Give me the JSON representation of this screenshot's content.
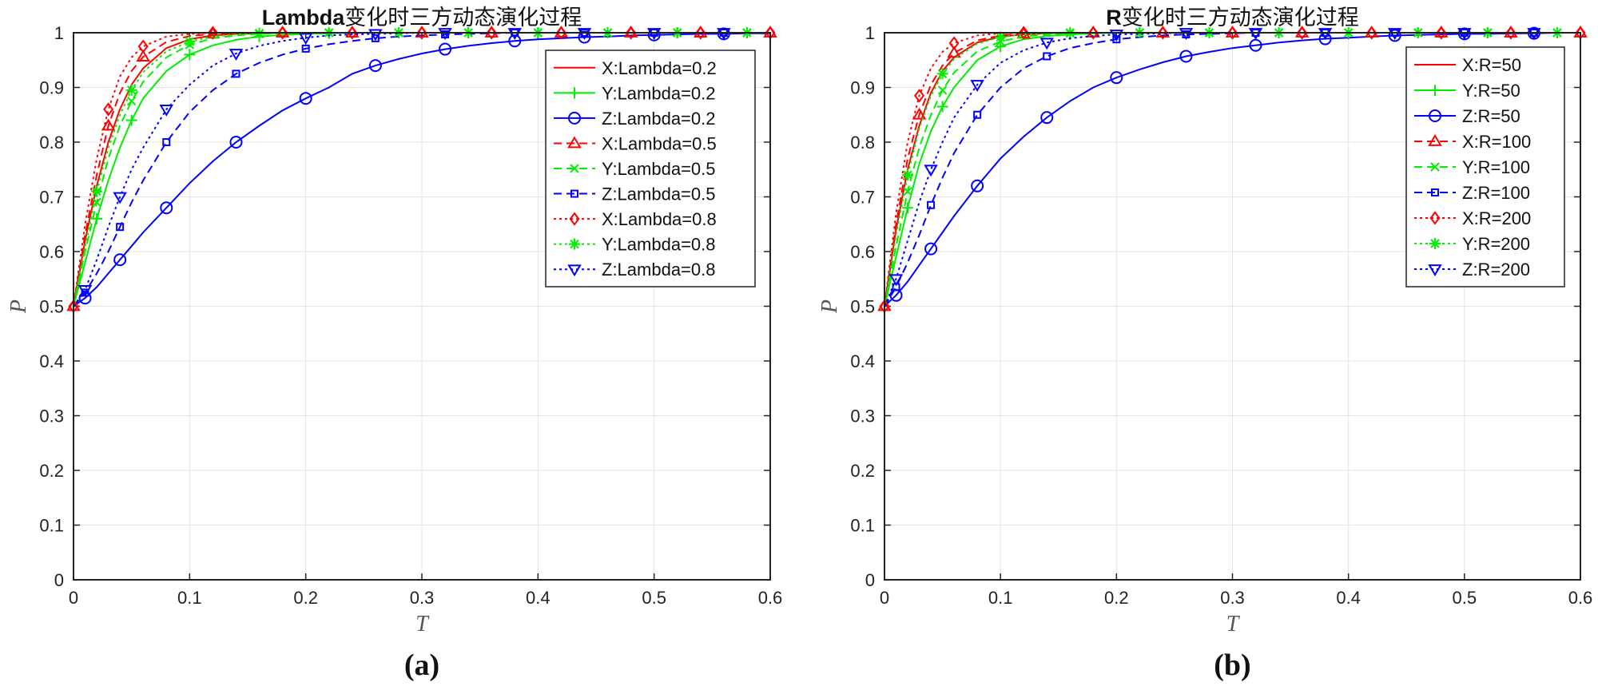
{
  "chart_data": [
    {
      "type": "line",
      "title_bold": "Lambda",
      "title_rest": "变化时三方动态演化过程",
      "xlabel": "T",
      "ylabel": "P",
      "xlim": [
        0,
        0.6
      ],
      "ylim": [
        0,
        1
      ],
      "xticks": [
        "0",
        "0.1",
        "0.2",
        "0.3",
        "0.4",
        "0.5",
        "0.6"
      ],
      "yticks": [
        "0",
        "0.1",
        "0.2",
        "0.3",
        "0.4",
        "0.5",
        "0.6",
        "0.7",
        "0.8",
        "0.9",
        "1"
      ],
      "grid": true,
      "legend_position": "top-right",
      "caption": "(a)",
      "x": [
        0,
        0.01,
        0.02,
        0.03,
        0.04,
        0.05,
        0.06,
        0.08,
        0.1,
        0.12,
        0.14,
        0.16,
        0.18,
        0.2,
        0.22,
        0.24,
        0.26,
        0.28,
        0.3,
        0.32,
        0.34,
        0.36,
        0.38,
        0.4,
        0.42,
        0.44,
        0.46,
        0.48,
        0.5,
        0.52,
        0.54,
        0.56,
        0.58,
        0.6
      ],
      "series": [
        {
          "name": "X:Lambda=0.2",
          "color": "#ff0000",
          "dash": "solid",
          "marker": "none",
          "values": [
            0.5,
            0.62,
            0.72,
            0.8,
            0.86,
            0.905,
            0.935,
            0.972,
            0.988,
            0.995,
            0.998,
            0.999,
            1,
            1,
            1,
            1,
            1,
            1,
            1,
            1,
            1,
            1,
            1,
            1,
            1,
            1,
            1,
            1,
            1,
            1,
            1,
            1,
            1,
            1
          ]
        },
        {
          "name": "Y:Lambda=0.2",
          "color": "#00ee00",
          "dash": "solid",
          "marker": "plus",
          "values": [
            0.5,
            0.58,
            0.66,
            0.73,
            0.79,
            0.84,
            0.88,
            0.93,
            0.96,
            0.977,
            0.987,
            0.993,
            0.996,
            0.998,
            0.999,
            1,
            1,
            1,
            1,
            1,
            1,
            1,
            1,
            1,
            1,
            1,
            1,
            1,
            1,
            1,
            1,
            1,
            1,
            1
          ]
        },
        {
          "name": "Z:Lambda=0.2",
          "color": "#0000ff",
          "dash": "solid",
          "marker": "circle",
          "values": [
            0.5,
            0.515,
            0.535,
            0.56,
            0.585,
            0.61,
            0.635,
            0.68,
            0.725,
            0.765,
            0.8,
            0.83,
            0.858,
            0.88,
            0.9,
            0.925,
            0.94,
            0.952,
            0.962,
            0.97,
            0.976,
            0.981,
            0.985,
            0.988,
            0.99,
            0.992,
            0.993,
            0.995,
            0.996,
            0.997,
            0.998,
            0.998,
            0.999,
            0.999
          ]
        },
        {
          "name": "X:Lambda=0.5",
          "color": "#ff0000",
          "dash": "dashed",
          "marker": "triangle",
          "values": [
            0.5,
            0.63,
            0.74,
            0.83,
            0.89,
            0.93,
            0.956,
            0.983,
            0.994,
            0.998,
            1,
            1,
            1,
            1,
            1,
            1,
            1,
            1,
            1,
            1,
            1,
            1,
            1,
            1,
            1,
            1,
            1,
            1,
            1,
            1,
            1,
            1,
            1,
            1
          ]
        },
        {
          "name": "Y:Lambda=0.5",
          "color": "#00ee00",
          "dash": "dashed",
          "marker": "cross",
          "values": [
            0.5,
            0.6,
            0.69,
            0.77,
            0.83,
            0.875,
            0.91,
            0.955,
            0.978,
            0.99,
            0.995,
            0.998,
            0.999,
            1,
            1,
            1,
            1,
            1,
            1,
            1,
            1,
            1,
            1,
            1,
            1,
            1,
            1,
            1,
            1,
            1,
            1,
            1,
            1,
            1
          ]
        },
        {
          "name": "Z:Lambda=0.5",
          "color": "#0000ff",
          "dash": "dashed",
          "marker": "square",
          "values": [
            0.5,
            0.525,
            0.56,
            0.6,
            0.645,
            0.69,
            0.73,
            0.8,
            0.855,
            0.895,
            0.925,
            0.945,
            0.96,
            0.971,
            0.979,
            0.985,
            0.99,
            0.993,
            0.995,
            0.997,
            0.998,
            0.999,
            1,
            1,
            1,
            1,
            1,
            1,
            1,
            1,
            1,
            1,
            1,
            1
          ]
        },
        {
          "name": "X:Lambda=0.8",
          "color": "#ff0000",
          "dash": "dotted",
          "marker": "diamond",
          "values": [
            0.5,
            0.65,
            0.77,
            0.86,
            0.92,
            0.955,
            0.975,
            0.993,
            0.998,
            1,
            1,
            1,
            1,
            1,
            1,
            1,
            1,
            1,
            1,
            1,
            1,
            1,
            1,
            1,
            1,
            1,
            1,
            1,
            1,
            1,
            1,
            1,
            1,
            1
          ]
        },
        {
          "name": "Y:Lambda=0.8",
          "color": "#00ee00",
          "dash": "dotted",
          "marker": "star",
          "values": [
            0.5,
            0.61,
            0.71,
            0.79,
            0.85,
            0.895,
            0.928,
            0.966,
            0.984,
            0.993,
            0.997,
            0.999,
            1,
            1,
            1,
            1,
            1,
            1,
            1,
            1,
            1,
            1,
            1,
            1,
            1,
            1,
            1,
            1,
            1,
            1,
            1,
            1,
            1,
            1
          ]
        },
        {
          "name": "Z:Lambda=0.8",
          "color": "#0000ff",
          "dash": "dotted",
          "marker": "triangle-down",
          "values": [
            0.5,
            0.53,
            0.585,
            0.645,
            0.7,
            0.75,
            0.79,
            0.86,
            0.905,
            0.94,
            0.962,
            0.976,
            0.985,
            0.991,
            0.995,
            0.997,
            0.998,
            0.999,
            1,
            1,
            1,
            1,
            1,
            1,
            1,
            1,
            1,
            1,
            1,
            1,
            1,
            1,
            1,
            1
          ]
        }
      ]
    },
    {
      "type": "line",
      "title_bold": "R",
      "title_rest": "变化时三方动态演化过程",
      "xlabel": "T",
      "ylabel": "P",
      "xlim": [
        0,
        0.6
      ],
      "ylim": [
        0,
        1
      ],
      "xticks": [
        "0",
        "0.1",
        "0.2",
        "0.3",
        "0.4",
        "0.5",
        "0.6"
      ],
      "yticks": [
        "0",
        "0.1",
        "0.2",
        "0.3",
        "0.4",
        "0.5",
        "0.6",
        "0.7",
        "0.8",
        "0.9",
        "1"
      ],
      "grid": true,
      "legend_position": "top-right",
      "caption": "(b)",
      "x": [
        0,
        0.01,
        0.02,
        0.03,
        0.04,
        0.05,
        0.06,
        0.08,
        0.1,
        0.12,
        0.14,
        0.16,
        0.18,
        0.2,
        0.22,
        0.24,
        0.26,
        0.28,
        0.3,
        0.32,
        0.34,
        0.36,
        0.38,
        0.4,
        0.42,
        0.44,
        0.46,
        0.48,
        0.5,
        0.52,
        0.54,
        0.56,
        0.58,
        0.6
      ],
      "series": [
        {
          "name": "X:R=50",
          "color": "#ff0000",
          "dash": "solid",
          "marker": "none",
          "values": [
            0.5,
            0.64,
            0.75,
            0.83,
            0.89,
            0.93,
            0.955,
            0.982,
            0.993,
            0.997,
            0.999,
            1,
            1,
            1,
            1,
            1,
            1,
            1,
            1,
            1,
            1,
            1,
            1,
            1,
            1,
            1,
            1,
            1,
            1,
            1,
            1,
            1,
            1,
            1
          ]
        },
        {
          "name": "Y:R=50",
          "color": "#00ee00",
          "dash": "solid",
          "marker": "plus",
          "values": [
            0.5,
            0.59,
            0.68,
            0.76,
            0.82,
            0.865,
            0.9,
            0.95,
            0.975,
            0.988,
            0.994,
            0.997,
            0.999,
            1,
            1,
            1,
            1,
            1,
            1,
            1,
            1,
            1,
            1,
            1,
            1,
            1,
            1,
            1,
            1,
            1,
            1,
            1,
            1,
            1
          ]
        },
        {
          "name": "Z:R=50",
          "color": "#0000ff",
          "dash": "solid",
          "marker": "circle",
          "values": [
            0.5,
            0.52,
            0.545,
            0.575,
            0.605,
            0.635,
            0.665,
            0.72,
            0.77,
            0.81,
            0.845,
            0.875,
            0.9,
            0.918,
            0.933,
            0.946,
            0.957,
            0.965,
            0.972,
            0.977,
            0.982,
            0.986,
            0.989,
            0.991,
            0.993,
            0.995,
            0.996,
            0.997,
            0.998,
            0.998,
            0.999,
            0.999,
            1,
            1
          ]
        },
        {
          "name": "X:R=100",
          "color": "#ff0000",
          "dash": "dashed",
          "marker": "triangle",
          "values": [
            0.5,
            0.65,
            0.77,
            0.85,
            0.905,
            0.94,
            0.963,
            0.986,
            0.995,
            0.998,
            1,
            1,
            1,
            1,
            1,
            1,
            1,
            1,
            1,
            1,
            1,
            1,
            1,
            1,
            1,
            1,
            1,
            1,
            1,
            1,
            1,
            1,
            1,
            1
          ]
        },
        {
          "name": "Y:R=100",
          "color": "#00ee00",
          "dash": "dashed",
          "marker": "cross",
          "values": [
            0.5,
            0.61,
            0.71,
            0.79,
            0.85,
            0.895,
            0.927,
            0.966,
            0.984,
            0.993,
            0.997,
            0.999,
            1,
            1,
            1,
            1,
            1,
            1,
            1,
            1,
            1,
            1,
            1,
            1,
            1,
            1,
            1,
            1,
            1,
            1,
            1,
            1,
            1,
            1
          ]
        },
        {
          "name": "Z:R=100",
          "color": "#0000ff",
          "dash": "dashed",
          "marker": "square",
          "values": [
            0.5,
            0.535,
            0.58,
            0.63,
            0.685,
            0.735,
            0.78,
            0.85,
            0.9,
            0.935,
            0.957,
            0.972,
            0.981,
            0.988,
            0.992,
            0.995,
            0.997,
            0.998,
            0.999,
            1,
            1,
            1,
            1,
            1,
            1,
            1,
            1,
            1,
            1,
            1,
            1,
            1,
            1,
            1
          ]
        },
        {
          "name": "X:R=200",
          "color": "#ff0000",
          "dash": "dotted",
          "marker": "diamond",
          "values": [
            0.5,
            0.67,
            0.8,
            0.885,
            0.935,
            0.965,
            0.981,
            0.995,
            0.999,
            1,
            1,
            1,
            1,
            1,
            1,
            1,
            1,
            1,
            1,
            1,
            1,
            1,
            1,
            1,
            1,
            1,
            1,
            1,
            1,
            1,
            1,
            1,
            1,
            1
          ]
        },
        {
          "name": "Y:R=200",
          "color": "#00ee00",
          "dash": "dotted",
          "marker": "star",
          "values": [
            0.5,
            0.63,
            0.74,
            0.825,
            0.885,
            0.925,
            0.952,
            0.98,
            0.992,
            0.997,
            0.999,
            1,
            1,
            1,
            1,
            1,
            1,
            1,
            1,
            1,
            1,
            1,
            1,
            1,
            1,
            1,
            1,
            1,
            1,
            1,
            1,
            1,
            1,
            1
          ]
        },
        {
          "name": "Z:R=200",
          "color": "#0000ff",
          "dash": "dotted",
          "marker": "triangle-down",
          "values": [
            0.5,
            0.55,
            0.62,
            0.69,
            0.75,
            0.8,
            0.845,
            0.905,
            0.945,
            0.968,
            0.982,
            0.99,
            0.994,
            0.997,
            0.998,
            0.999,
            1,
            1,
            1,
            1,
            1,
            1,
            1,
            1,
            1,
            1,
            1,
            1,
            1,
            1,
            1,
            1,
            1,
            1
          ]
        }
      ]
    }
  ]
}
